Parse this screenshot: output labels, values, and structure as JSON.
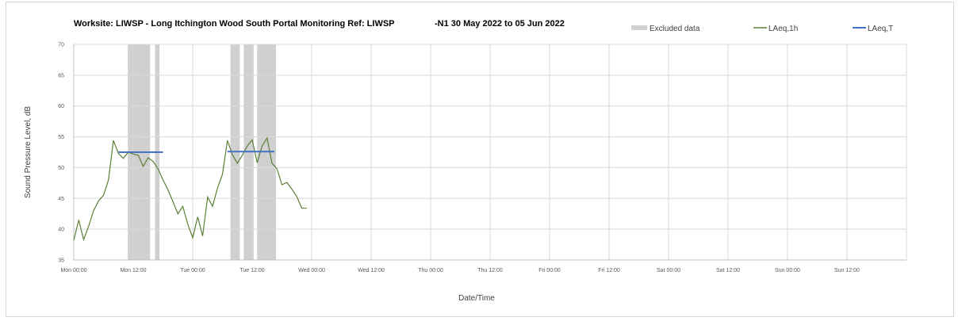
{
  "chart_data": {
    "type": "line",
    "title": "Worksite: LIWSP - Long Itchington Wood South Portal Monitoring Ref: LIWSP",
    "title_suffix": "-N1 30 May 2022 to 05 Jun 2022",
    "xlabel": "Date/Time",
    "ylabel": "Sound Pressure Level, dB",
    "ylim": [
      35,
      70
    ],
    "y_ticks": [
      35,
      40,
      45,
      50,
      55,
      60,
      65,
      70
    ],
    "xlim_hours": [
      0,
      168
    ],
    "x_ticks": [
      {
        "label": "Mon 00:00",
        "hour": 0
      },
      {
        "label": "Mon 12:00",
        "hour": 12
      },
      {
        "label": "Tue 00:00",
        "hour": 24
      },
      {
        "label": "Tue 12:00",
        "hour": 36
      },
      {
        "label": "Wed 00:00",
        "hour": 48
      },
      {
        "label": "Wed 12:00",
        "hour": 60
      },
      {
        "label": "Thu 00:00",
        "hour": 72
      },
      {
        "label": "Thu 12:00",
        "hour": 84
      },
      {
        "label": "Fri 00:00",
        "hour": 96
      },
      {
        "label": "Fri 12:00",
        "hour": 108
      },
      {
        "label": "Sat 00:00",
        "hour": 120
      },
      {
        "label": "Sat 12:00",
        "hour": 132
      },
      {
        "label": "Sun 00:00",
        "hour": 144
      },
      {
        "label": "Sun 12:00",
        "hour": 156
      }
    ],
    "grid": true,
    "legend_placement": "top-right",
    "legend": [
      {
        "name": "Excluded data",
        "kind": "band",
        "color": "#d0d0d0"
      },
      {
        "name": "LAeq,1h",
        "kind": "line",
        "color": "#5b7f35"
      },
      {
        "name": "LAeq,T",
        "kind": "line",
        "color": "#4472c4"
      }
    ],
    "excluded_periods": [
      {
        "start": 10.9,
        "end": 15.4
      },
      {
        "start": 16.4,
        "end": 17.3
      },
      {
        "start": 31.6,
        "end": 33.5
      },
      {
        "start": 34.3,
        "end": 36.3
      },
      {
        "start": 37.0,
        "end": 40.8
      }
    ],
    "series": [
      {
        "name": "LAeq,1h",
        "color": "#5b7f35",
        "x": [
          0,
          1,
          2,
          3,
          4,
          5,
          6,
          7,
          8,
          9,
          10,
          11,
          12,
          13,
          14,
          15,
          16,
          17,
          18,
          19,
          20,
          21,
          22,
          23,
          24,
          25,
          26,
          27,
          28,
          29,
          30,
          31,
          32,
          33,
          34,
          35,
          36,
          37,
          38,
          39,
          40,
          41,
          42,
          43,
          44,
          45,
          46,
          47
        ],
        "y": [
          38.2,
          41.5,
          38.3,
          40.5,
          43.0,
          44.6,
          45.5,
          48.0,
          54.4,
          52.3,
          51.5,
          52.5,
          52.2,
          52.0,
          50.2,
          51.6,
          51.0,
          49.8,
          48.0,
          46.4,
          44.5,
          42.5,
          43.7,
          40.8,
          38.6,
          42.0,
          38.9,
          45.2,
          43.7,
          46.7,
          48.9,
          54.4,
          52.1,
          50.7,
          52.0,
          53.5,
          54.5,
          50.8,
          53.5,
          54.8,
          50.7,
          49.8,
          47.2,
          47.6,
          46.5,
          45.3,
          43.4,
          43.4
        ]
      },
      {
        "name": "LAeq,T",
        "color": "#4472c4",
        "segments": [
          {
            "x": [
              9,
              18
            ],
            "y": [
              52.5,
              52.5
            ]
          },
          {
            "x": [
              31,
              40.5
            ],
            "y": [
              52.6,
              52.6
            ]
          }
        ]
      }
    ]
  }
}
